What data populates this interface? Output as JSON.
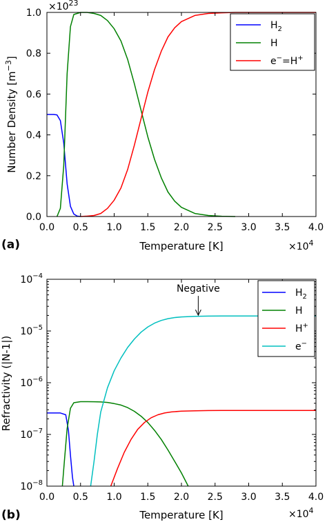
{
  "chart_data": [
    {
      "panel_label": "(a)",
      "type": "line",
      "xlabel": "Temperature [K]",
      "ylabel": "Number Density [m^-3]",
      "x_multiplier": "×10^4",
      "y_multiplier": "×10^23",
      "xlim": [
        0,
        40000
      ],
      "ylim": [
        0,
        1.0
      ],
      "x_scale": "linear",
      "y_scale": "linear",
      "x_ticks": [
        "0.0",
        "0.5",
        "1.0",
        "1.5",
        "2.0",
        "2.5",
        "3.0",
        "3.5",
        "4.0"
      ],
      "y_ticks": [
        "0.0",
        "0.2",
        "0.4",
        "0.6",
        "0.8",
        "1.0"
      ],
      "legend_position": "top-right",
      "series": [
        {
          "name": "H2",
          "color": "#0000ff",
          "x": [
            0,
            1000,
            1500,
            2000,
            2500,
            3000,
            3500,
            4000,
            4500,
            5000
          ],
          "y": [
            0.5,
            0.5,
            0.498,
            0.47,
            0.36,
            0.16,
            0.05,
            0.012,
            0.002,
            0.0
          ]
        },
        {
          "name": "H",
          "color": "#008000",
          "x": [
            1500,
            2000,
            2500,
            3000,
            3500,
            4000,
            5000,
            6000,
            7000,
            8000,
            9000,
            10000,
            11000,
            12000,
            13000,
            14000,
            15000,
            16000,
            17000,
            18000,
            19000,
            20000,
            22000,
            24000,
            26000,
            28000
          ],
          "y": [
            0.0,
            0.04,
            0.25,
            0.7,
            0.93,
            0.99,
            1.0,
            1.0,
            0.995,
            0.985,
            0.96,
            0.92,
            0.86,
            0.77,
            0.65,
            0.52,
            0.39,
            0.28,
            0.19,
            0.12,
            0.075,
            0.045,
            0.015,
            0.005,
            0.0015,
            0.0
          ]
        },
        {
          "name": "e−=H+",
          "color": "#ff0000",
          "x": [
            5000,
            6000,
            7000,
            8000,
            9000,
            10000,
            11000,
            12000,
            13000,
            14000,
            15000,
            16000,
            17000,
            18000,
            19000,
            20000,
            22000,
            24000,
            26000,
            28000,
            30000,
            40000
          ],
          "y": [
            0.0,
            0.002,
            0.005,
            0.015,
            0.04,
            0.08,
            0.14,
            0.23,
            0.35,
            0.48,
            0.61,
            0.72,
            0.81,
            0.88,
            0.925,
            0.955,
            0.985,
            0.995,
            0.998,
            1.0,
            1.0,
            1.0
          ]
        }
      ]
    },
    {
      "panel_label": "(b)",
      "type": "line",
      "xlabel": "Temperature [K]",
      "ylabel": "Refractivity (|N-1|)",
      "x_multiplier": "×10^4",
      "xlim": [
        0,
        40000
      ],
      "ylim": [
        1e-08,
        0.0001
      ],
      "x_scale": "linear",
      "y_scale": "log",
      "x_ticks": [
        "0.0",
        "0.5",
        "1.0",
        "1.5",
        "2.0",
        "2.5",
        "3.0",
        "3.5",
        "4.0"
      ],
      "y_ticks": [
        "10^-8",
        "10^-7",
        "10^-6",
        "10^-5",
        "10^-4"
      ],
      "legend_position": "top-right",
      "annotation": {
        "text": "Negative",
        "x": 22500,
        "y": 1.9e-05
      },
      "series": [
        {
          "name": "H2",
          "color": "#0000ff",
          "x": [
            0,
            2000,
            2800,
            3200,
            3500,
            3800,
            4000
          ],
          "y": [
            2.6e-07,
            2.6e-07,
            2.4e-07,
            1.2e-07,
            4e-08,
            1.5e-08,
            1e-08
          ]
        },
        {
          "name": "H",
          "color": "#008000",
          "x": [
            2300,
            2600,
            3000,
            3500,
            4000,
            5000,
            6000,
            7000,
            8000,
            9000,
            10000,
            11000,
            12000,
            13000,
            14000,
            15000,
            16000,
            17000,
            18000,
            19000,
            20000,
            21000
          ],
          "y": [
            1e-08,
            3e-08,
            1.3e-07,
            3.2e-07,
            4.1e-07,
            4.3e-07,
            4.3e-07,
            4.29e-07,
            4.25e-07,
            4.15e-07,
            3.95e-07,
            3.7e-07,
            3.3e-07,
            2.8e-07,
            2.25e-07,
            1.7e-07,
            1.2e-07,
            8e-08,
            5e-08,
            3e-08,
            1.8e-08,
            1e-08
          ]
        },
        {
          "name": "H+",
          "color": "#ff0000",
          "x": [
            9500,
            10500,
            11500,
            12500,
            13500,
            14500,
            15500,
            16500,
            17500,
            18500,
            20000,
            22000,
            24000,
            26000,
            30000,
            40000
          ],
          "y": [
            1e-08,
            2.2e-08,
            4.5e-08,
            8e-08,
            1.25e-07,
            1.7e-07,
            2.1e-07,
            2.4e-07,
            2.6e-07,
            2.72e-07,
            2.82e-07,
            2.87e-07,
            2.89e-07,
            2.9e-07,
            2.9e-07,
            2.9e-07
          ]
        },
        {
          "name": "e−",
          "color": "#00bfbf",
          "x": [
            6500,
            7000,
            7500,
            8000,
            9000,
            10000,
            11000,
            12000,
            13000,
            14000,
            15000,
            16000,
            17000,
            18000,
            19000,
            20000,
            22000,
            24000,
            26000,
            30000,
            40000
          ],
          "y": [
            1e-08,
            3e-08,
            1e-07,
            2.7e-07,
            8e-07,
            1.7e-06,
            3e-06,
            4.8e-06,
            7e-06,
            9.5e-06,
            1.2e-05,
            1.42e-05,
            1.6e-05,
            1.73e-05,
            1.82e-05,
            1.87e-05,
            1.92e-05,
            1.94e-05,
            1.95e-05,
            1.95e-05,
            1.95e-05
          ]
        }
      ]
    }
  ]
}
